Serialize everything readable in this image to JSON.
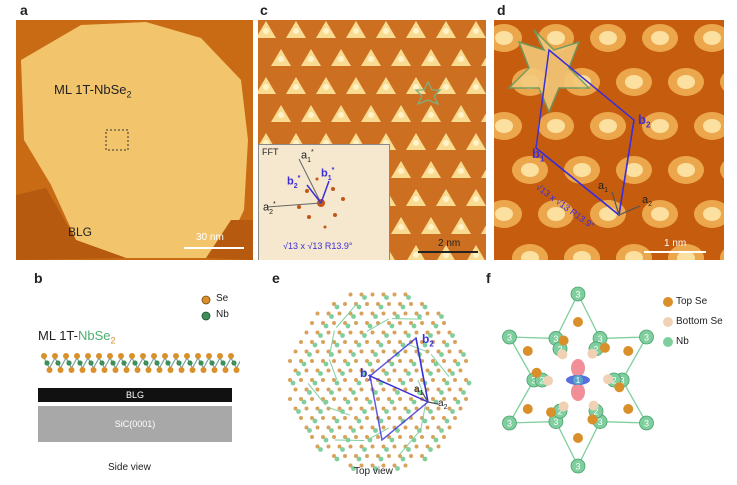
{
  "labels": {
    "a": "a",
    "b": "b",
    "c": "c",
    "d": "d",
    "e": "e",
    "f": "f"
  },
  "panel_a": {
    "material": "ML 1T-NbSe",
    "material_sub": "2",
    "substrate": "BLG",
    "scale": "30 nm"
  },
  "panel_c": {
    "fft_label": "FFT",
    "a1s": "a",
    "a1s_sub": "1",
    "a1s_sup": "*",
    "a2s": "a",
    "a2s_sub": "2",
    "a2s_sup": "*",
    "b1s": "b",
    "b1s_sub": "1",
    "b1s_sup": "*",
    "b2s": "b",
    "b2s_sub": "2",
    "b2s_sup": "*",
    "superlattice": "√13 x √13 R13.9°",
    "scale": "2 nm"
  },
  "panel_d": {
    "b1": "b",
    "b1_sub": "1",
    "b2": "b",
    "b2_sub": "2",
    "a1": "a",
    "a1_sub": "1",
    "a2": "a",
    "a2_sub": "2",
    "superlattice": "√13 x √13 R13.9°",
    "scale": "1 nm"
  },
  "panel_b": {
    "legend_se": "Se",
    "legend_nb": "Nb",
    "material_prefix": "ML 1T-",
    "material_nb": "NbSe",
    "material_sub": "2",
    "layer_blg": "BLG",
    "layer_sic": "SiC(0001)",
    "caption": "Side view"
  },
  "panel_e": {
    "b1": "b",
    "b1_sub": "1",
    "b2": "b",
    "b2_sub": "2",
    "a1": "a",
    "a1_sub": "1",
    "a2": "a",
    "a2_sub": "2",
    "caption": "Top view"
  },
  "panel_f": {
    "legend_top": "Top Se",
    "legend_bottom": "Bottom Se",
    "legend_nb": "Nb",
    "site1": "1",
    "site2": "2",
    "site3": "3"
  },
  "colors": {
    "stm_dark": "#c0550a",
    "stm_mid": "#e89a3a",
    "stm_light": "#f6d48a",
    "se": "#d9902b",
    "se_bottom": "#efd2b5",
    "nb": "#7fcf9e",
    "vector": "#3b2fd6"
  }
}
